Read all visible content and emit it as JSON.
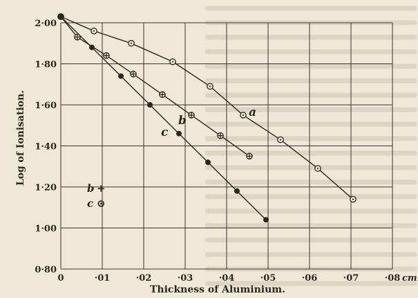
{
  "chart_data": {
    "type": "line",
    "title": "",
    "xlabel": "Thickness of Aluminium.",
    "ylabel": "Log of Ionisation.",
    "xlim": [
      0,
      0.08
    ],
    "ylim": [
      0.8,
      2.0
    ],
    "grid": true,
    "x_ticks": [
      {
        "value": 0,
        "label": "0"
      },
      {
        "value": 0.01,
        "label": "·01"
      },
      {
        "value": 0.02,
        "label": "·02"
      },
      {
        "value": 0.03,
        "label": "·03"
      },
      {
        "value": 0.04,
        "label": "·04"
      },
      {
        "value": 0.05,
        "label": "·05"
      },
      {
        "value": 0.06,
        "label": "·06"
      },
      {
        "value": 0.07,
        "label": "·07"
      },
      {
        "value": 0.08,
        "label": "·08"
      }
    ],
    "x_unit": "cm.",
    "y_ticks": [
      {
        "value": 0.8,
        "label": "0·80"
      },
      {
        "value": 1.0,
        "label": "1·00"
      },
      {
        "value": 1.2,
        "label": "1·20"
      },
      {
        "value": 1.4,
        "label": "1·40"
      },
      {
        "value": 1.6,
        "label": "1·60"
      },
      {
        "value": 1.8,
        "label": "1·80"
      },
      {
        "value": 2.0,
        "label": "2·00"
      }
    ],
    "legend": [
      {
        "symbol": "+",
        "label": "b"
      },
      {
        "symbol": "⊙",
        "label": "c"
      }
    ],
    "series": [
      {
        "name": "a",
        "marker": "circle",
        "x": [
          0,
          0.008,
          0.017,
          0.027,
          0.036,
          0.044,
          0.053,
          0.062,
          0.0705
        ],
        "y": [
          2.03,
          1.96,
          1.9,
          1.81,
          1.69,
          1.55,
          1.43,
          1.29,
          1.14
        ]
      },
      {
        "name": "b",
        "marker": "plus",
        "x": [
          0,
          0.004,
          0.011,
          0.0175,
          0.0245,
          0.0315,
          0.0385,
          0.0455
        ],
        "y": [
          2.03,
          1.93,
          1.84,
          1.75,
          1.65,
          1.55,
          1.45,
          1.35
        ]
      },
      {
        "name": "c",
        "marker": "dot",
        "x": [
          0,
          0.0075,
          0.0145,
          0.0215,
          0.0285,
          0.0355,
          0.0425,
          0.0495
        ],
        "y": [
          2.03,
          1.88,
          1.74,
          1.6,
          1.46,
          1.32,
          1.18,
          1.04
        ]
      }
    ]
  }
}
